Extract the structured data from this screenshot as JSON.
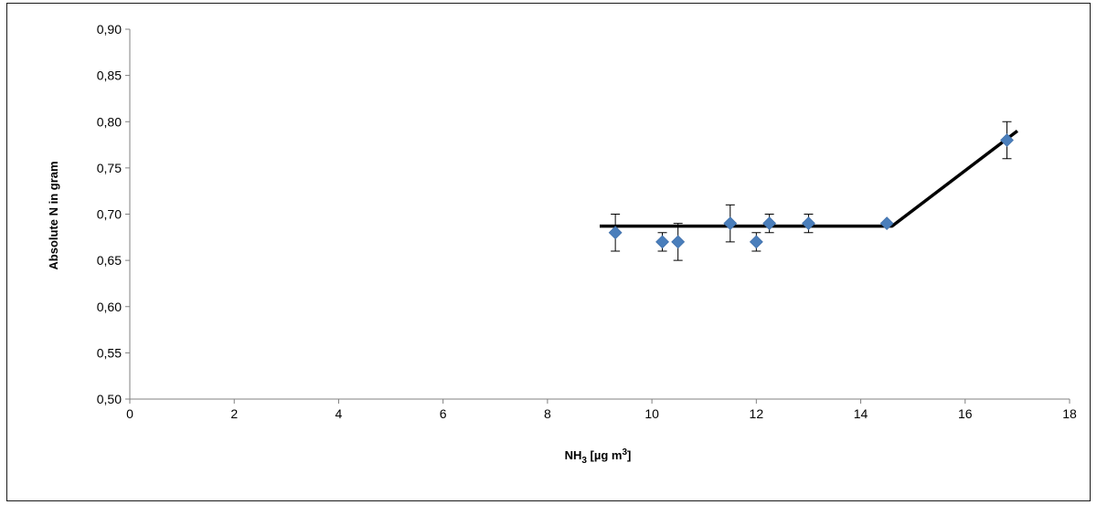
{
  "chart_data": {
    "type": "scatter",
    "xlabel": "NH₃ [µg m³]",
    "xlabel_parts": {
      "base": "NH",
      "sub": "3",
      "unit_open": " [µg m",
      "sup": "3",
      "unit_close": "]"
    },
    "ylabel": "Absolute N in gram",
    "xlim": [
      0,
      18
    ],
    "ylim": [
      0.5,
      0.9
    ],
    "x_ticks": [
      0,
      2,
      4,
      6,
      8,
      10,
      12,
      14,
      16,
      18
    ],
    "x_tick_labels": [
      "0",
      "2",
      "4",
      "6",
      "8",
      "10",
      "12",
      "14",
      "16",
      "18"
    ],
    "y_ticks": [
      0.5,
      0.55,
      0.6,
      0.65,
      0.7,
      0.75,
      0.8,
      0.85,
      0.9
    ],
    "y_tick_labels": [
      "0,50",
      "0,55",
      "0,60",
      "0,65",
      "0,70",
      "0,75",
      "0,80",
      "0,85",
      "0,90"
    ],
    "grid": false,
    "legend": "none",
    "marker": "diamond",
    "marker_color": "#4a7ebb",
    "fit_line_color": "#000000",
    "points": [
      {
        "x": 9.3,
        "y": 0.68,
        "err": 0.02
      },
      {
        "x": 10.2,
        "y": 0.67,
        "err": 0.01
      },
      {
        "x": 10.5,
        "y": 0.67,
        "err": 0.02
      },
      {
        "x": 11.5,
        "y": 0.69,
        "err": 0.02
      },
      {
        "x": 12.0,
        "y": 0.67,
        "err": 0.01
      },
      {
        "x": 12.25,
        "y": 0.69,
        "err": 0.01
      },
      {
        "x": 13.0,
        "y": 0.69,
        "err": 0.01
      },
      {
        "x": 14.5,
        "y": 0.69,
        "err": 0.0
      },
      {
        "x": 16.8,
        "y": 0.78,
        "err": 0.02
      }
    ],
    "fit_line": [
      {
        "x": 9.0,
        "y": 0.687
      },
      {
        "x": 14.6,
        "y": 0.687
      },
      {
        "x": 17.0,
        "y": 0.79
      }
    ]
  }
}
